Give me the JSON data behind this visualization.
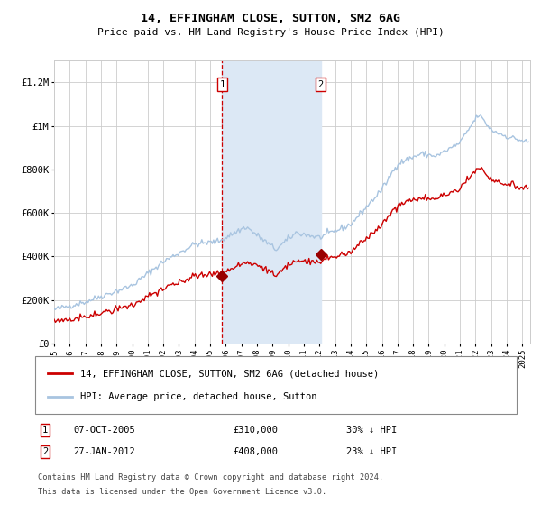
{
  "title": "14, EFFINGHAM CLOSE, SUTTON, SM2 6AG",
  "subtitle": "Price paid vs. HM Land Registry's House Price Index (HPI)",
  "ylim": [
    0,
    1300000
  ],
  "xlim_start": 1995.0,
  "xlim_end": 2025.5,
  "sale1_date": 2005.77,
  "sale1_price": 310000,
  "sale1_label": "1",
  "sale1_text": "07-OCT-2005",
  "sale1_price_str": "£310,000",
  "sale1_pct": "30% ↓ HPI",
  "sale2_date": 2012.07,
  "sale2_price": 408000,
  "sale2_label": "2",
  "sale2_text": "27-JAN-2012",
  "sale2_price_str": "£408,000",
  "sale2_pct": "23% ↓ HPI",
  "legend_line1": "14, EFFINGHAM CLOSE, SUTTON, SM2 6AG (detached house)",
  "legend_line2": "HPI: Average price, detached house, Sutton",
  "footnote1": "Contains HM Land Registry data © Crown copyright and database right 2024.",
  "footnote2": "This data is licensed under the Open Government Licence v3.0.",
  "hpi_color": "#a8c4e0",
  "price_color": "#cc0000",
  "shade_color": "#dce8f5",
  "grid_color": "#cccccc",
  "bg_color": "#ffffff",
  "dashed_color": "#cc0000",
  "marker_color": "#990000",
  "yticks": [
    0,
    200000,
    400000,
    600000,
    800000,
    1000000,
    1200000
  ],
  "ytick_labels": [
    "£0",
    "£200K",
    "£400K",
    "£600K",
    "£800K",
    "£1M",
    "£1.2M"
  ],
  "xticks": [
    1995,
    1996,
    1997,
    1998,
    1999,
    2000,
    2001,
    2002,
    2003,
    2004,
    2005,
    2006,
    2007,
    2008,
    2009,
    2010,
    2011,
    2012,
    2013,
    2014,
    2015,
    2016,
    2017,
    2018,
    2019,
    2020,
    2021,
    2022,
    2023,
    2024,
    2025
  ]
}
